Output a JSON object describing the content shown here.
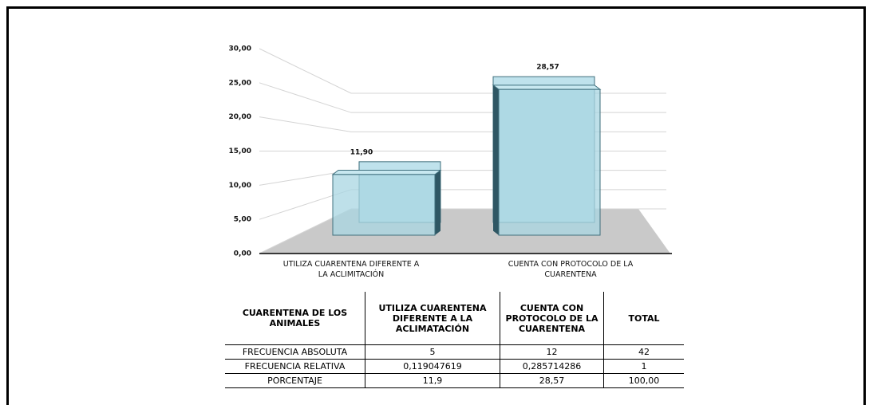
{
  "chart_data": {
    "type": "bar3d",
    "categories": [
      "UTILIZA CUARENTENA DIFERENTE A LA ACLIMITACIÓN",
      "CUENTA CON PROTOCOLO DE LA CUARENTENA"
    ],
    "values": [
      11.9,
      28.57
    ],
    "value_labels": [
      "11,90",
      "28,57"
    ],
    "color": "#a8d5e2",
    "ylim": [
      0,
      30
    ],
    "yticks": [
      {
        "value": 0,
        "label": "0,00"
      },
      {
        "value": 5,
        "label": "5,00"
      },
      {
        "value": 10,
        "label": "10,00"
      },
      {
        "value": 15,
        "label": "15,00"
      },
      {
        "value": 20,
        "label": "20,00"
      },
      {
        "value": 25,
        "label": "25,00"
      },
      {
        "value": 30,
        "label": "30,00"
      }
    ],
    "grid": true
  },
  "table": {
    "header": [
      "CUARENTENA DE LOS ANIMALES",
      "UTILIZA CUARENTENA DIFERENTE A LA ACLIMATACIÓN",
      "CUENTA CON PROTOCOLO DE LA CUARENTENA",
      "TOTAL"
    ],
    "rows": [
      [
        "FRECUENCIA ABSOLUTA",
        "5",
        "12",
        "42"
      ],
      [
        "FRECUENCIA RELATIVA",
        "0,119047619",
        "0,285714286",
        "1"
      ],
      [
        "PORCENTAJE",
        "11,9",
        "28,57",
        "100,00"
      ]
    ]
  }
}
